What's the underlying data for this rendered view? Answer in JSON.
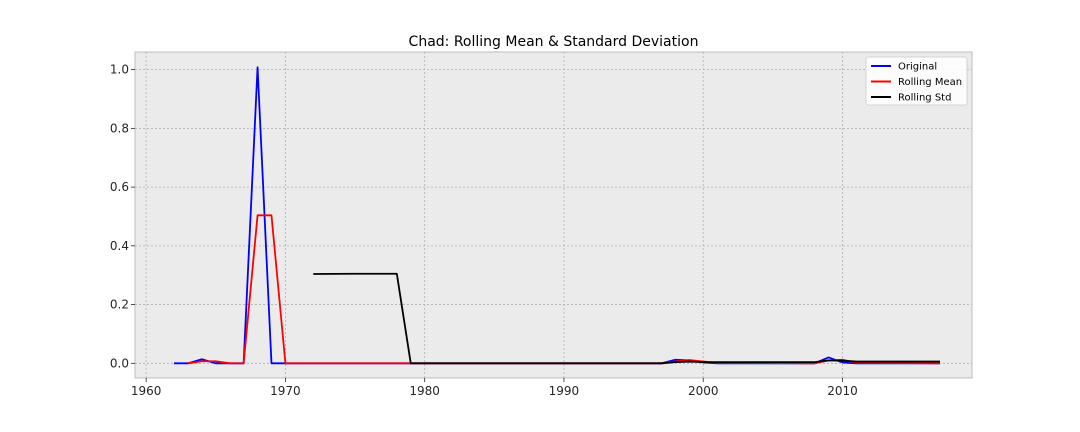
{
  "chart_data": {
    "type": "line",
    "title": "Chad: Rolling Mean & Standard Deviation",
    "xlabel": "",
    "ylabel": "",
    "xlim": [
      1959.2,
      2019.3
    ],
    "ylim": [
      -0.05,
      1.06
    ],
    "x_ticks": [
      1960,
      1970,
      1980,
      1990,
      2000,
      2010
    ],
    "y_ticks": [
      0.0,
      0.2,
      0.4,
      0.6,
      0.8,
      1.0
    ],
    "x_tick_labels": [
      "1960",
      "1970",
      "1980",
      "1990",
      "2000",
      "2010"
    ],
    "y_tick_labels": [
      "0.0",
      "0.2",
      "0.4",
      "0.6",
      "0.8",
      "1.0"
    ],
    "grid": true,
    "background": "#ebebeb",
    "legend_position": "top-right",
    "series": [
      {
        "name": "Original",
        "color": "#0000ff",
        "points": [
          [
            1962,
            0
          ],
          [
            1963,
            0
          ],
          [
            1964,
            0.014
          ],
          [
            1965,
            0
          ],
          [
            1966,
            0
          ],
          [
            1967,
            0
          ],
          [
            1968,
            1.008
          ],
          [
            1969,
            0
          ],
          [
            1970,
            0
          ],
          [
            1971,
            0
          ],
          [
            1997,
            0
          ],
          [
            1998,
            0.012
          ],
          [
            1999,
            0.01
          ],
          [
            2000,
            0.003
          ],
          [
            2001,
            0
          ],
          [
            2008,
            0
          ],
          [
            2009,
            0.02
          ],
          [
            2010,
            0.003
          ],
          [
            2011,
            0
          ],
          [
            2017,
            0
          ]
        ]
      },
      {
        "name": "Rolling Mean",
        "color": "#ff0000",
        "points": [
          [
            1963,
            0
          ],
          [
            1964,
            0.007
          ],
          [
            1965,
            0.007
          ],
          [
            1966,
            0
          ],
          [
            1967,
            0
          ],
          [
            1968,
            0.504
          ],
          [
            1969,
            0.504
          ],
          [
            1970,
            0
          ],
          [
            1971,
            0
          ],
          [
            1997,
            0
          ],
          [
            1998,
            0.006
          ],
          [
            1999,
            0.011
          ],
          [
            2000,
            0.006
          ],
          [
            2001,
            0.002
          ],
          [
            2008,
            0
          ],
          [
            2009,
            0.01
          ],
          [
            2010,
            0.012
          ],
          [
            2011,
            0.002
          ],
          [
            2017,
            0
          ]
        ]
      },
      {
        "name": "Rolling Std",
        "color": "#000000",
        "points": [
          [
            1972,
            0.304
          ],
          [
            1975,
            0.305
          ],
          [
            1978,
            0.305
          ],
          [
            1979,
            0
          ],
          [
            1980,
            0
          ],
          [
            1997,
            0
          ],
          [
            1998,
            0.004
          ],
          [
            1999,
            0.006
          ],
          [
            2000,
            0.004
          ],
          [
            2001,
            0.004
          ],
          [
            2008,
            0.004
          ],
          [
            2009,
            0.01
          ],
          [
            2010,
            0.009
          ],
          [
            2011,
            0.006
          ],
          [
            2017,
            0.006
          ]
        ]
      }
    ]
  }
}
